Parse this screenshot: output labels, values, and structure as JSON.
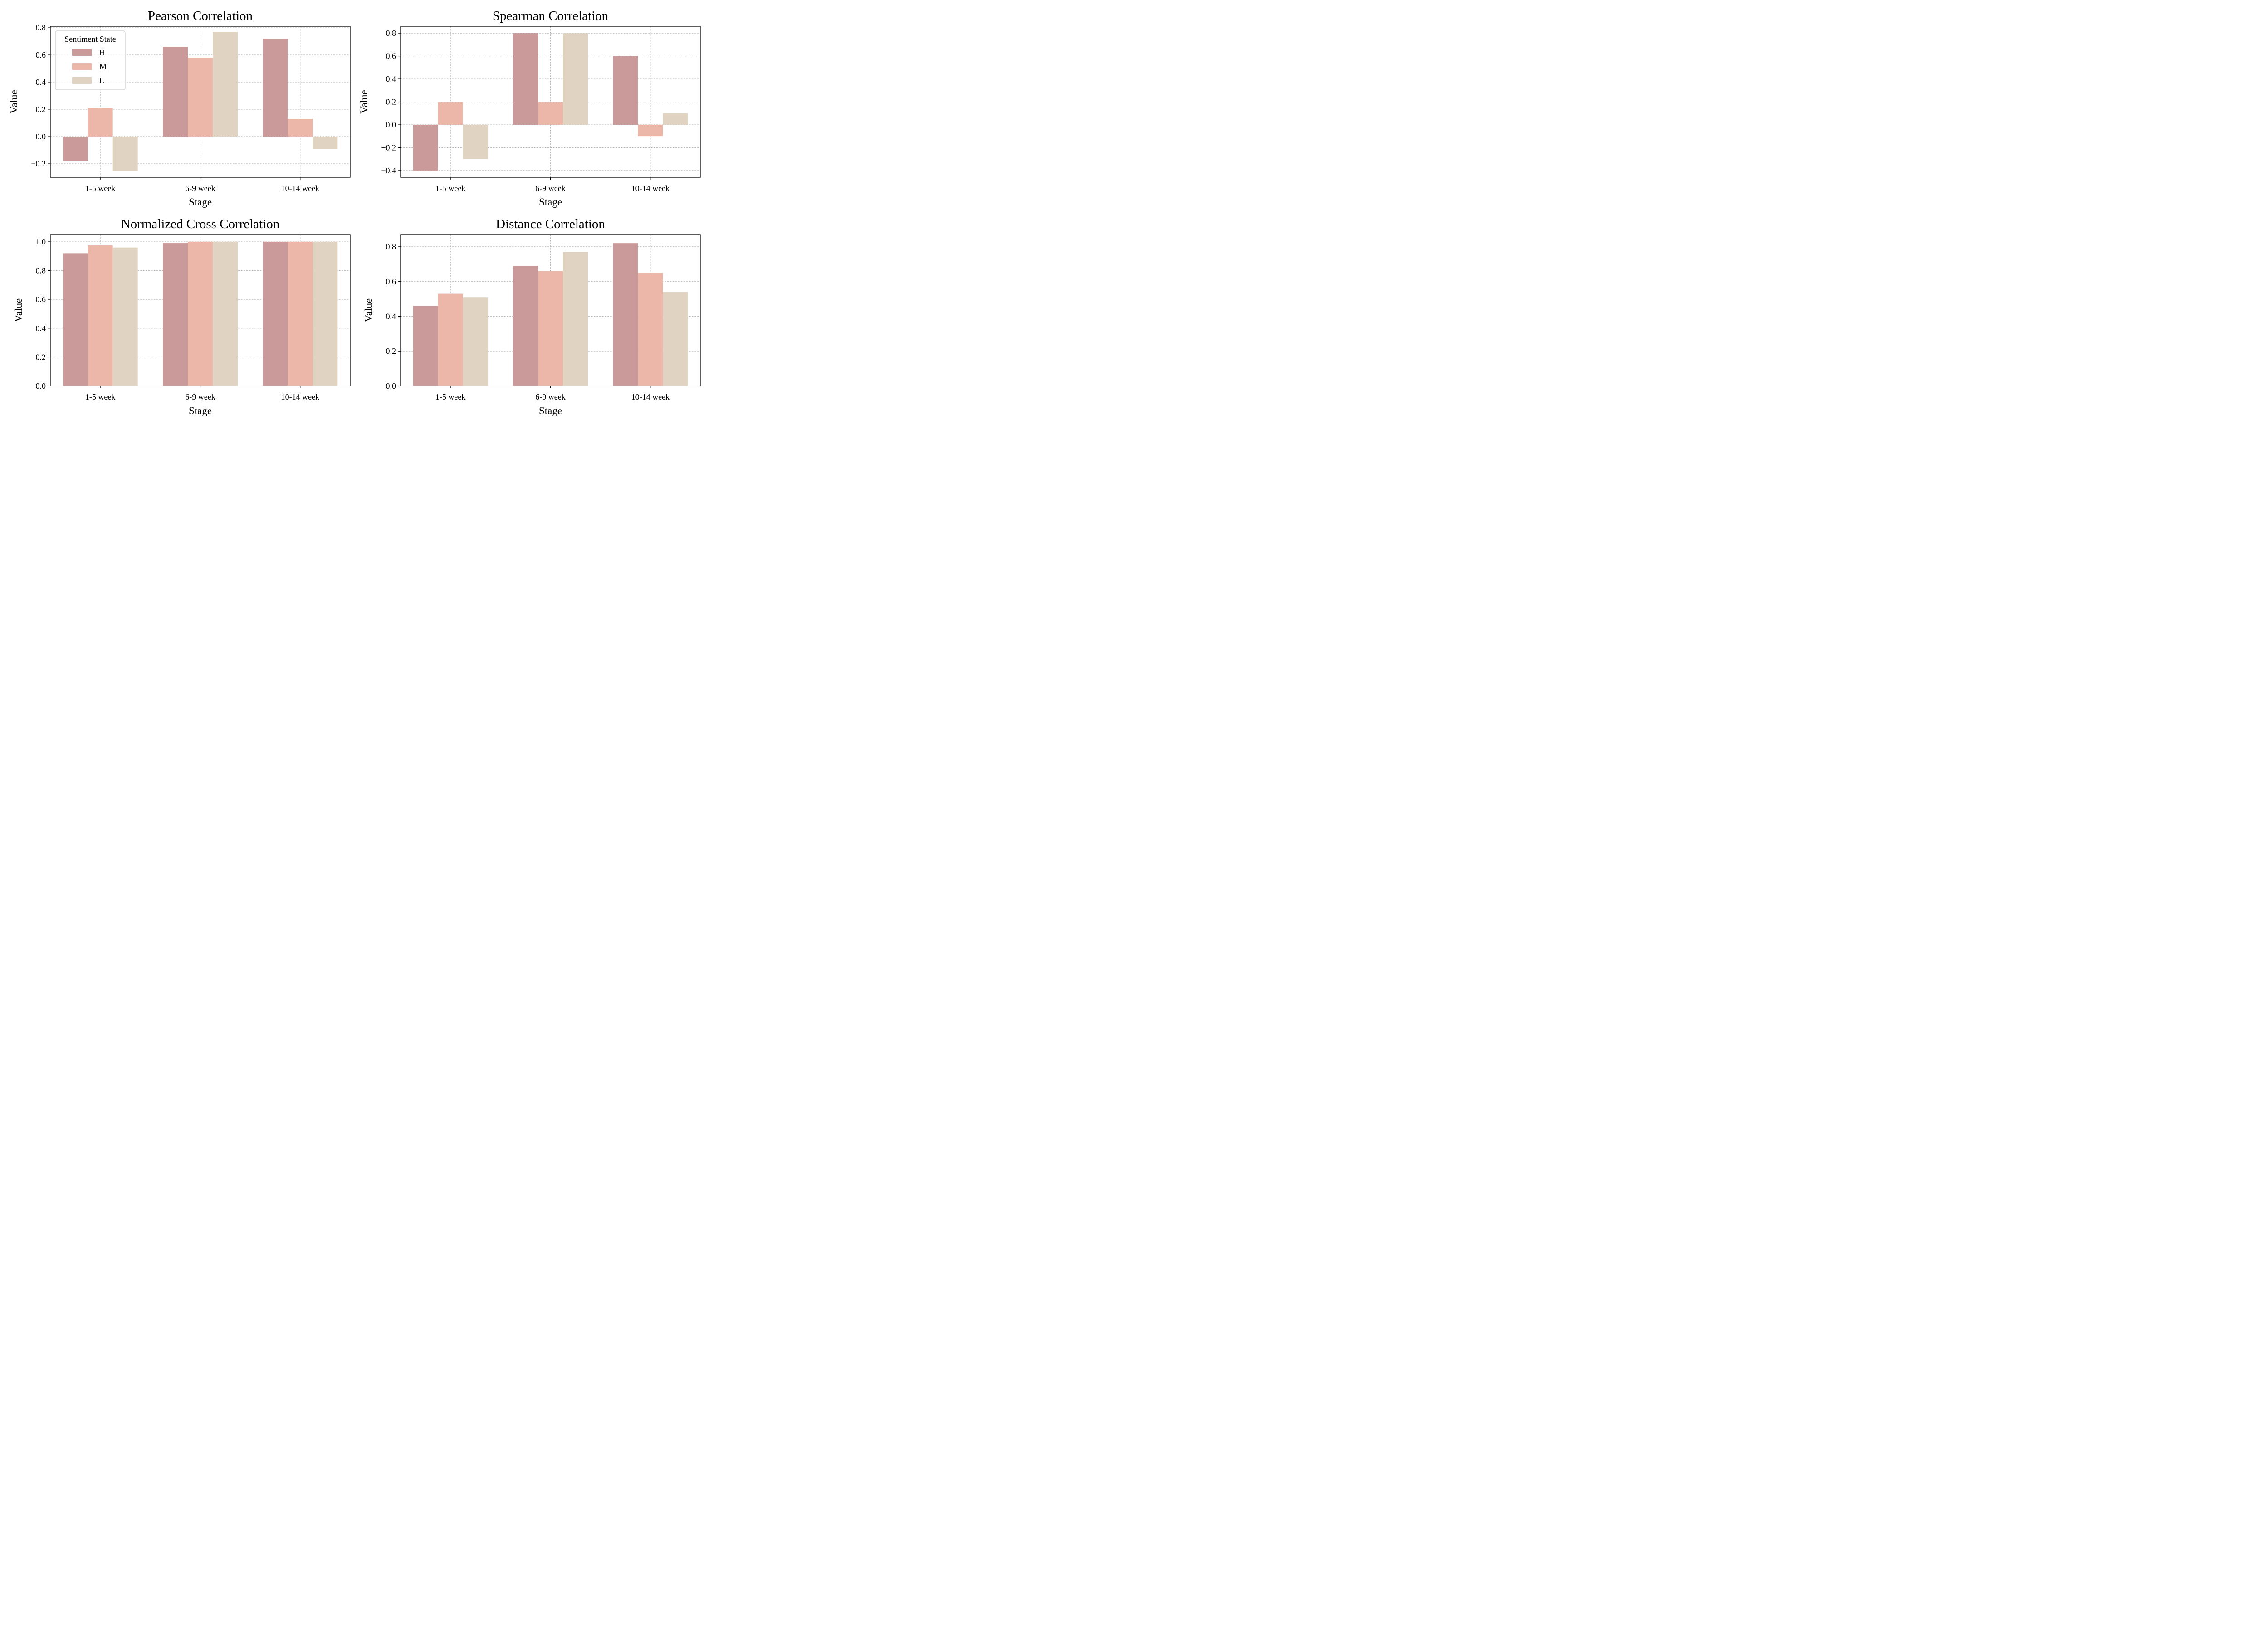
{
  "chart_data": [
    {
      "type": "bar",
      "title": "Pearson Correlation",
      "xlabel": "Stage",
      "ylabel": "Value",
      "categories": [
        "1-5 week",
        "6-9 week",
        "10-14 week"
      ],
      "series": [
        {
          "name": "H",
          "values": [
            -0.18,
            0.66,
            0.72
          ]
        },
        {
          "name": "M",
          "values": [
            0.21,
            0.58,
            0.13
          ]
        },
        {
          "name": "L",
          "values": [
            -0.25,
            0.77,
            -0.09
          ]
        }
      ],
      "ylim": [
        -0.3,
        0.81
      ],
      "yticks": [
        -0.2,
        0.0,
        0.2,
        0.4,
        0.6,
        0.8
      ],
      "ytick_labels": [
        "−0.2",
        "0.0",
        "0.2",
        "0.4",
        "0.6",
        "0.8"
      ],
      "grid": true,
      "legend": {
        "title": "Sentiment State",
        "position": "upper-left"
      }
    },
    {
      "type": "bar",
      "title": "Spearman Correlation",
      "xlabel": "Stage",
      "ylabel": "Value",
      "categories": [
        "1-5 week",
        "6-9 week",
        "10-14 week"
      ],
      "series": [
        {
          "name": "H",
          "values": [
            -0.4,
            0.8,
            0.6
          ]
        },
        {
          "name": "M",
          "values": [
            0.2,
            0.2,
            -0.1
          ]
        },
        {
          "name": "L",
          "values": [
            -0.3,
            0.8,
            0.1
          ]
        }
      ],
      "ylim": [
        -0.46,
        0.86
      ],
      "yticks": [
        -0.4,
        -0.2,
        0.0,
        0.2,
        0.4,
        0.6,
        0.8
      ],
      "ytick_labels": [
        "−0.4",
        "−0.2",
        "0.0",
        "0.2",
        "0.4",
        "0.6",
        "0.8"
      ],
      "grid": true
    },
    {
      "type": "bar",
      "title": "Normalized Cross Correlation",
      "xlabel": "Stage",
      "ylabel": "Value",
      "categories": [
        "1-5 week",
        "6-9 week",
        "10-14 week"
      ],
      "series": [
        {
          "name": "H",
          "values": [
            0.92,
            0.99,
            1.0
          ]
        },
        {
          "name": "M",
          "values": [
            0.975,
            1.0,
            1.0
          ]
        },
        {
          "name": "L",
          "values": [
            0.96,
            1.0,
            1.0
          ]
        }
      ],
      "ylim": [
        0.0,
        1.05
      ],
      "yticks": [
        0.0,
        0.2,
        0.4,
        0.6,
        0.8,
        1.0
      ],
      "ytick_labels": [
        "0.0",
        "0.2",
        "0.4",
        "0.6",
        "0.8",
        "1.0"
      ],
      "grid": true
    },
    {
      "type": "bar",
      "title": "Distance Correlation",
      "xlabel": "Stage",
      "ylabel": "Value",
      "categories": [
        "1-5 week",
        "6-9 week",
        "10-14 week"
      ],
      "series": [
        {
          "name": "H",
          "values": [
            0.46,
            0.69,
            0.82
          ]
        },
        {
          "name": "M",
          "values": [
            0.53,
            0.66,
            0.65
          ]
        },
        {
          "name": "L",
          "values": [
            0.51,
            0.77,
            0.54
          ]
        }
      ],
      "ylim": [
        0.0,
        0.87
      ],
      "yticks": [
        0.0,
        0.2,
        0.4,
        0.6,
        0.8
      ],
      "ytick_labels": [
        "0.0",
        "0.2",
        "0.4",
        "0.6",
        "0.8"
      ],
      "grid": true
    }
  ],
  "colors": {
    "H": "#c99a99",
    "M": "#ecb6a9",
    "L": "#e1d3c1"
  }
}
